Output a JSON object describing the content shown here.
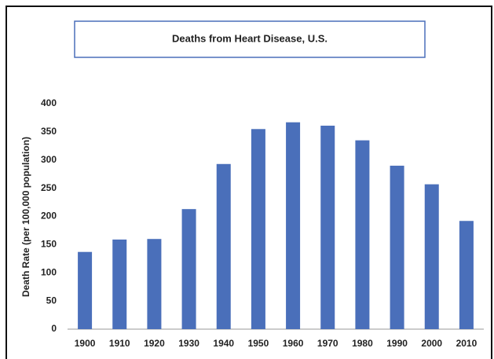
{
  "chart_data": {
    "type": "bar",
    "title": "Deaths from Heart Disease, U.S.",
    "y_label": "Death Rate (per 100,000 population)",
    "categories": [
      "1900",
      "1910",
      "1920",
      "1930",
      "1940",
      "1950",
      "1960",
      "1970",
      "1980",
      "1990",
      "2000",
      "2010"
    ],
    "values": [
      137,
      159,
      160,
      213,
      293,
      355,
      367,
      361,
      335,
      290,
      257,
      192
    ],
    "color": "#4a6fba",
    "ylim": [
      0,
      400
    ],
    "yticks": [
      0,
      50,
      100,
      150,
      200,
      250,
      300,
      350,
      400
    ],
    "grid": false
  }
}
